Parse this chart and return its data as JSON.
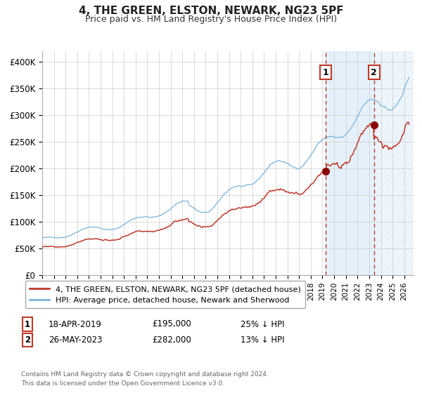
{
  "title": "4, THE GREEN, ELSTON, NEWARK, NG23 5PF",
  "subtitle": "Price paid vs. HM Land Registry's House Price Index (HPI)",
  "hpi_color": "#7ab3d9",
  "price_color": "#c0392b",
  "xlim_start": 1995.0,
  "xlim_end": 2026.8,
  "ylim": [
    0,
    420000
  ],
  "yticks": [
    0,
    50000,
    100000,
    150000,
    200000,
    250000,
    300000,
    350000,
    400000
  ],
  "ytick_labels": [
    "£0",
    "£50K",
    "£100K",
    "£150K",
    "£200K",
    "£250K",
    "£300K",
    "£350K",
    "£400K"
  ],
  "sale1_date": 2019.29,
  "sale1_price": 195000,
  "sale2_date": 2023.41,
  "sale2_price": 282000,
  "legend_property": "4, THE GREEN, ELSTON, NEWARK, NG23 5PF (detached house)",
  "legend_hpi": "HPI: Average price, detached house, Newark and Sherwood",
  "footer": "Contains HM Land Registry data © Crown copyright and database right 2024.\nThis data is licensed under the Open Government Licence v3.0."
}
